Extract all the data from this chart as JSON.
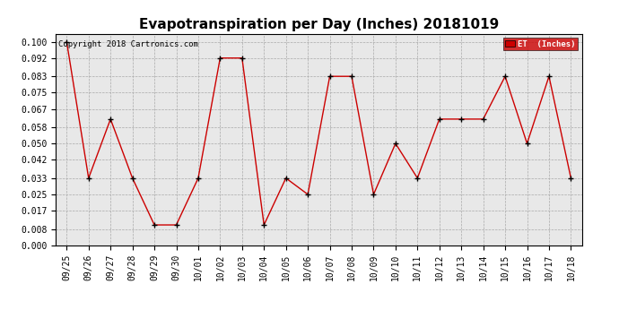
{
  "title": "Evapotranspiration per Day (Inches) 20181019",
  "copyright": "Copyright 2018 Cartronics.com",
  "legend_label": "ET  (Inches)",
  "legend_bg": "#cc0000",
  "legend_fg": "#ffffff",
  "x_labels": [
    "09/25",
    "09/26",
    "09/27",
    "09/28",
    "09/29",
    "09/30",
    "10/01",
    "10/02",
    "10/03",
    "10/04",
    "10/05",
    "10/06",
    "10/07",
    "10/08",
    "10/09",
    "10/10",
    "10/11",
    "10/12",
    "10/13",
    "10/14",
    "10/15",
    "10/16",
    "10/17",
    "10/18"
  ],
  "y_values": [
    0.1,
    0.033,
    0.062,
    0.033,
    0.01,
    0.01,
    0.033,
    0.092,
    0.092,
    0.01,
    0.033,
    0.025,
    0.083,
    0.083,
    0.025,
    0.05,
    0.033,
    0.062,
    0.062,
    0.062,
    0.083,
    0.05,
    0.083,
    0.033
  ],
  "line_color": "#cc0000",
  "marker_color": "#000000",
  "bg_color": "#ffffff",
  "plot_bg_color": "#e8e8e8",
  "grid_color": "#aaaaaa",
  "ylim": [
    0.0,
    0.104
  ],
  "yticks": [
    0.0,
    0.008,
    0.017,
    0.025,
    0.033,
    0.042,
    0.05,
    0.058,
    0.067,
    0.075,
    0.083,
    0.092,
    0.1
  ],
  "title_fontsize": 11,
  "tick_fontsize": 7,
  "copyright_fontsize": 6.5
}
